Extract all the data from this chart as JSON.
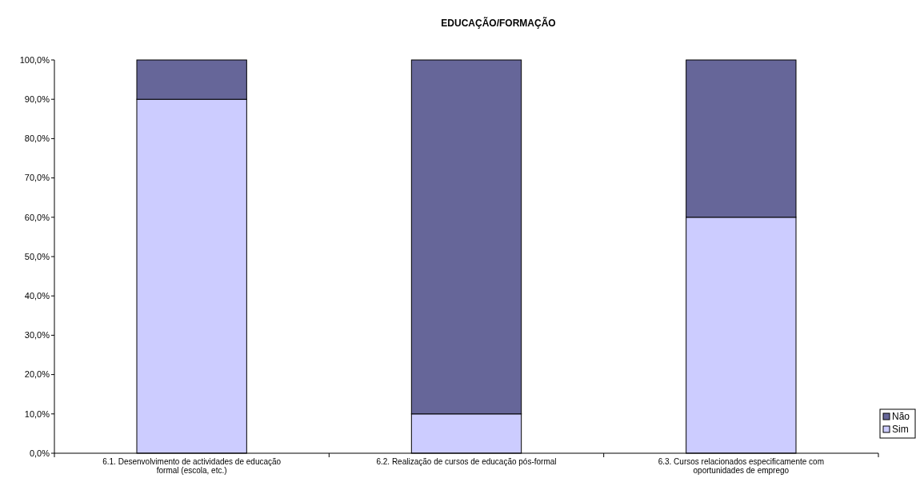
{
  "chart_data": {
    "type": "bar",
    "title": "EDUCAÇÃO/FORMAÇÃO",
    "stacked": true,
    "categories": [
      "6.1. Desenvolvimento de actividades de educação formal (escola, etc.)",
      "6.2. Realização de cursos de educação pós-formal",
      "6.3. Cursos relacionados especificamente com oportunidades de emprego"
    ],
    "series": [
      {
        "name": "Sim",
        "color": "#ccccff",
        "values": [
          90,
          10,
          60
        ]
      },
      {
        "name": "Não",
        "color": "#666699",
        "values": [
          10,
          90,
          40
        ]
      }
    ],
    "ylim": [
      0,
      100
    ],
    "yticks": [
      {
        "value": 0,
        "label": "0,0%"
      },
      {
        "value": 10,
        "label": "10,0%"
      },
      {
        "value": 20,
        "label": "20,0%"
      },
      {
        "value": 30,
        "label": "30,0%"
      },
      {
        "value": 40,
        "label": "40,0%"
      },
      {
        "value": 50,
        "label": "50,0%"
      },
      {
        "value": 60,
        "label": "60,0%"
      },
      {
        "value": 70,
        "label": "70,0%"
      },
      {
        "value": 80,
        "label": "80,0%"
      },
      {
        "value": 90,
        "label": "90,0%"
      },
      {
        "value": 100,
        "label": "100,0%"
      }
    ],
    "grid": false,
    "legend": "right"
  }
}
